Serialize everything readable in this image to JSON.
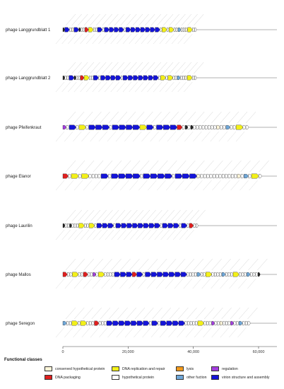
{
  "phages": [
    {
      "name": "phage Langgrundblatt 1",
      "genome_bp": 41000
    },
    {
      "name": "phage Langgrundblatt 2",
      "genome_bp": 41000
    },
    {
      "name": "phage Pfeifenkraut",
      "genome_bp": 57000
    },
    {
      "name": "phage Elanor",
      "genome_bp": 61000
    },
    {
      "name": "phage Laurilin",
      "genome_bp": 41500
    },
    {
      "name": "phage Mallos",
      "genome_bp": 60500
    },
    {
      "name": "phage Seregon",
      "genome_bp": 57500
    }
  ],
  "axis": {
    "min": 0,
    "max": 60000,
    "ticks": [
      {
        "value": 0,
        "label": "0"
      },
      {
        "value": 20000,
        "label": "20,000"
      },
      {
        "value": 40000,
        "label": "40,000"
      },
      {
        "value": 60000,
        "label": "60,000"
      }
    ]
  },
  "legend": {
    "title": "Functional classes",
    "items": [
      {
        "key": "conserved_hypothetical",
        "label": "conserved hypothetical protein",
        "color": "#fdf5d8"
      },
      {
        "key": "dna_packaging",
        "label": "DNA packaging",
        "color": "#e01f1f"
      },
      {
        "key": "dna_replication",
        "label": "DNA replication and repair",
        "color": "#f3f019"
      },
      {
        "key": "hypothetical",
        "label": "hypothetical protein",
        "color": "#ffffff"
      },
      {
        "key": "lysis",
        "label": "lysis",
        "color": "#f29a1c"
      },
      {
        "key": "other",
        "label": "other fuction",
        "color": "#6fa7d8"
      },
      {
        "key": "regulation",
        "label": "regulation",
        "color": "#a43ee0"
      },
      {
        "key": "virion",
        "label": "virion structure and assembly",
        "color": "#1414d8"
      }
    ]
  }
}
